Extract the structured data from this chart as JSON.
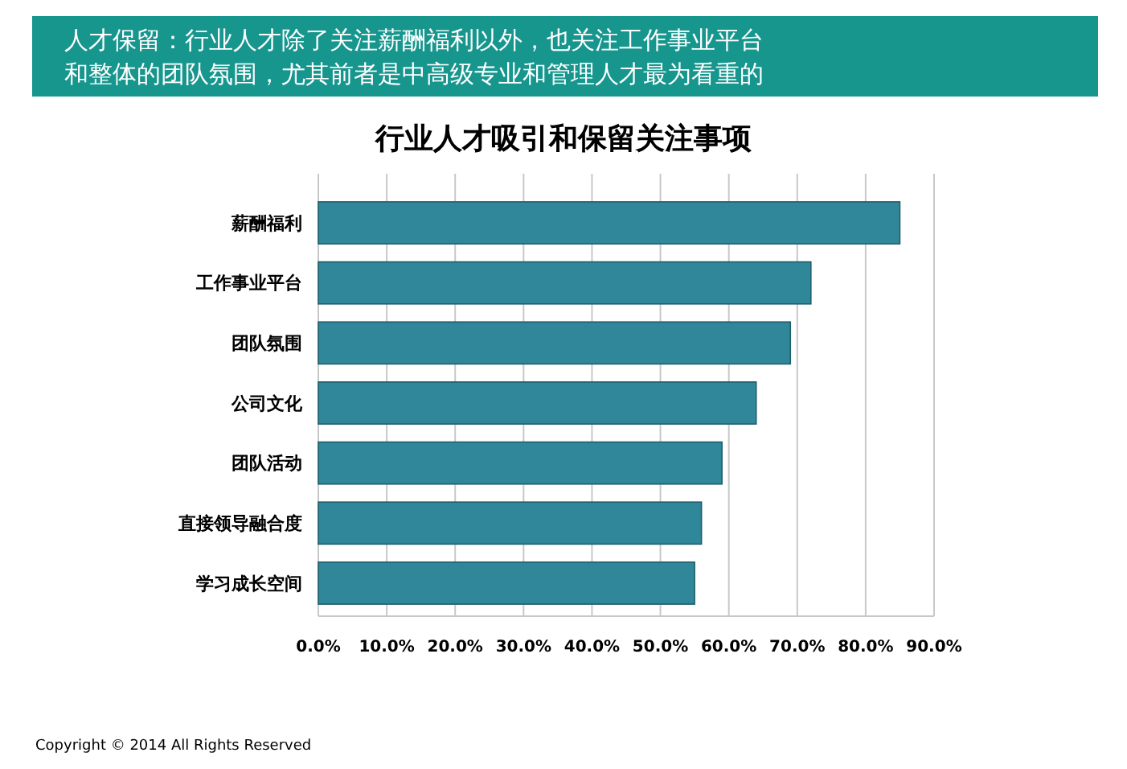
{
  "chart_data": {
    "type": "bar",
    "orientation": "horizontal",
    "title": "行业人才吸引和保留关注事项",
    "subtitle": "人才保留：行业人才除了关注薪酬福利以外，也关注工作事业平台和整体的团队氛围，尤其前者是中高级专业和管理人才最为看重的",
    "categories": [
      "薪酬福利",
      "工作事业平台",
      "团队氛围",
      "公司文化",
      "团队活动",
      "直接领导融合度",
      "学习成长空间"
    ],
    "values": [
      85,
      72,
      69,
      64,
      59,
      56,
      55
    ],
    "color": "#31879a",
    "xlim": [
      0,
      90
    ],
    "xticks": [
      {
        "value": 0,
        "label": "0.0%"
      },
      {
        "value": 10,
        "label": "10.0%"
      },
      {
        "value": 20,
        "label": "20.0%"
      },
      {
        "value": 30,
        "label": "30.0%"
      },
      {
        "value": 40,
        "label": "40.0%"
      },
      {
        "value": 50,
        "label": "50.0%"
      },
      {
        "value": 60,
        "label": "60.0%"
      },
      {
        "value": 70,
        "label": "70.0%"
      },
      {
        "value": 80,
        "label": "80.0%"
      },
      {
        "value": 90,
        "label": "90.0%"
      }
    ],
    "grid": "x",
    "annotations": [
      "Copyright © 2014 All Rights Reserved"
    ]
  }
}
